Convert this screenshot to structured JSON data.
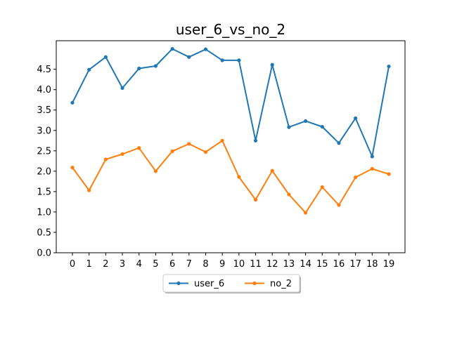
{
  "chart_data": {
    "type": "line",
    "title": "user_6_vs_no_2",
    "xlabel": "",
    "ylabel": "",
    "x": [
      0,
      1,
      2,
      3,
      4,
      5,
      6,
      7,
      8,
      9,
      10,
      11,
      12,
      13,
      14,
      15,
      16,
      17,
      18,
      19
    ],
    "xticks": [
      "0",
      "1",
      "2",
      "3",
      "4",
      "5",
      "6",
      "7",
      "8",
      "9",
      "10",
      "11",
      "12",
      "13",
      "14",
      "15",
      "16",
      "17",
      "18",
      "19"
    ],
    "yticks": [
      "0.0",
      "0.5",
      "1.0",
      "1.5",
      "2.0",
      "2.5",
      "3.0",
      "3.5",
      "4.0",
      "4.5"
    ],
    "ylim": [
      0,
      5.2
    ],
    "grid": false,
    "legend_position": "below-center",
    "series": [
      {
        "name": "user_6",
        "color": "#1f77b4",
        "values": [
          3.68,
          4.49,
          4.8,
          4.04,
          4.52,
          4.58,
          5.0,
          4.8,
          4.99,
          4.72,
          4.72,
          2.75,
          4.61,
          3.08,
          3.23,
          3.09,
          2.69,
          3.3,
          2.36,
          4.57
        ]
      },
      {
        "name": "no_2",
        "color": "#ff7f0e",
        "values": [
          2.09,
          1.53,
          2.29,
          2.42,
          2.57,
          2.0,
          2.49,
          2.67,
          2.47,
          2.75,
          1.86,
          1.3,
          2.01,
          1.43,
          0.98,
          1.61,
          1.17,
          1.85,
          2.06,
          1.93
        ]
      }
    ]
  }
}
